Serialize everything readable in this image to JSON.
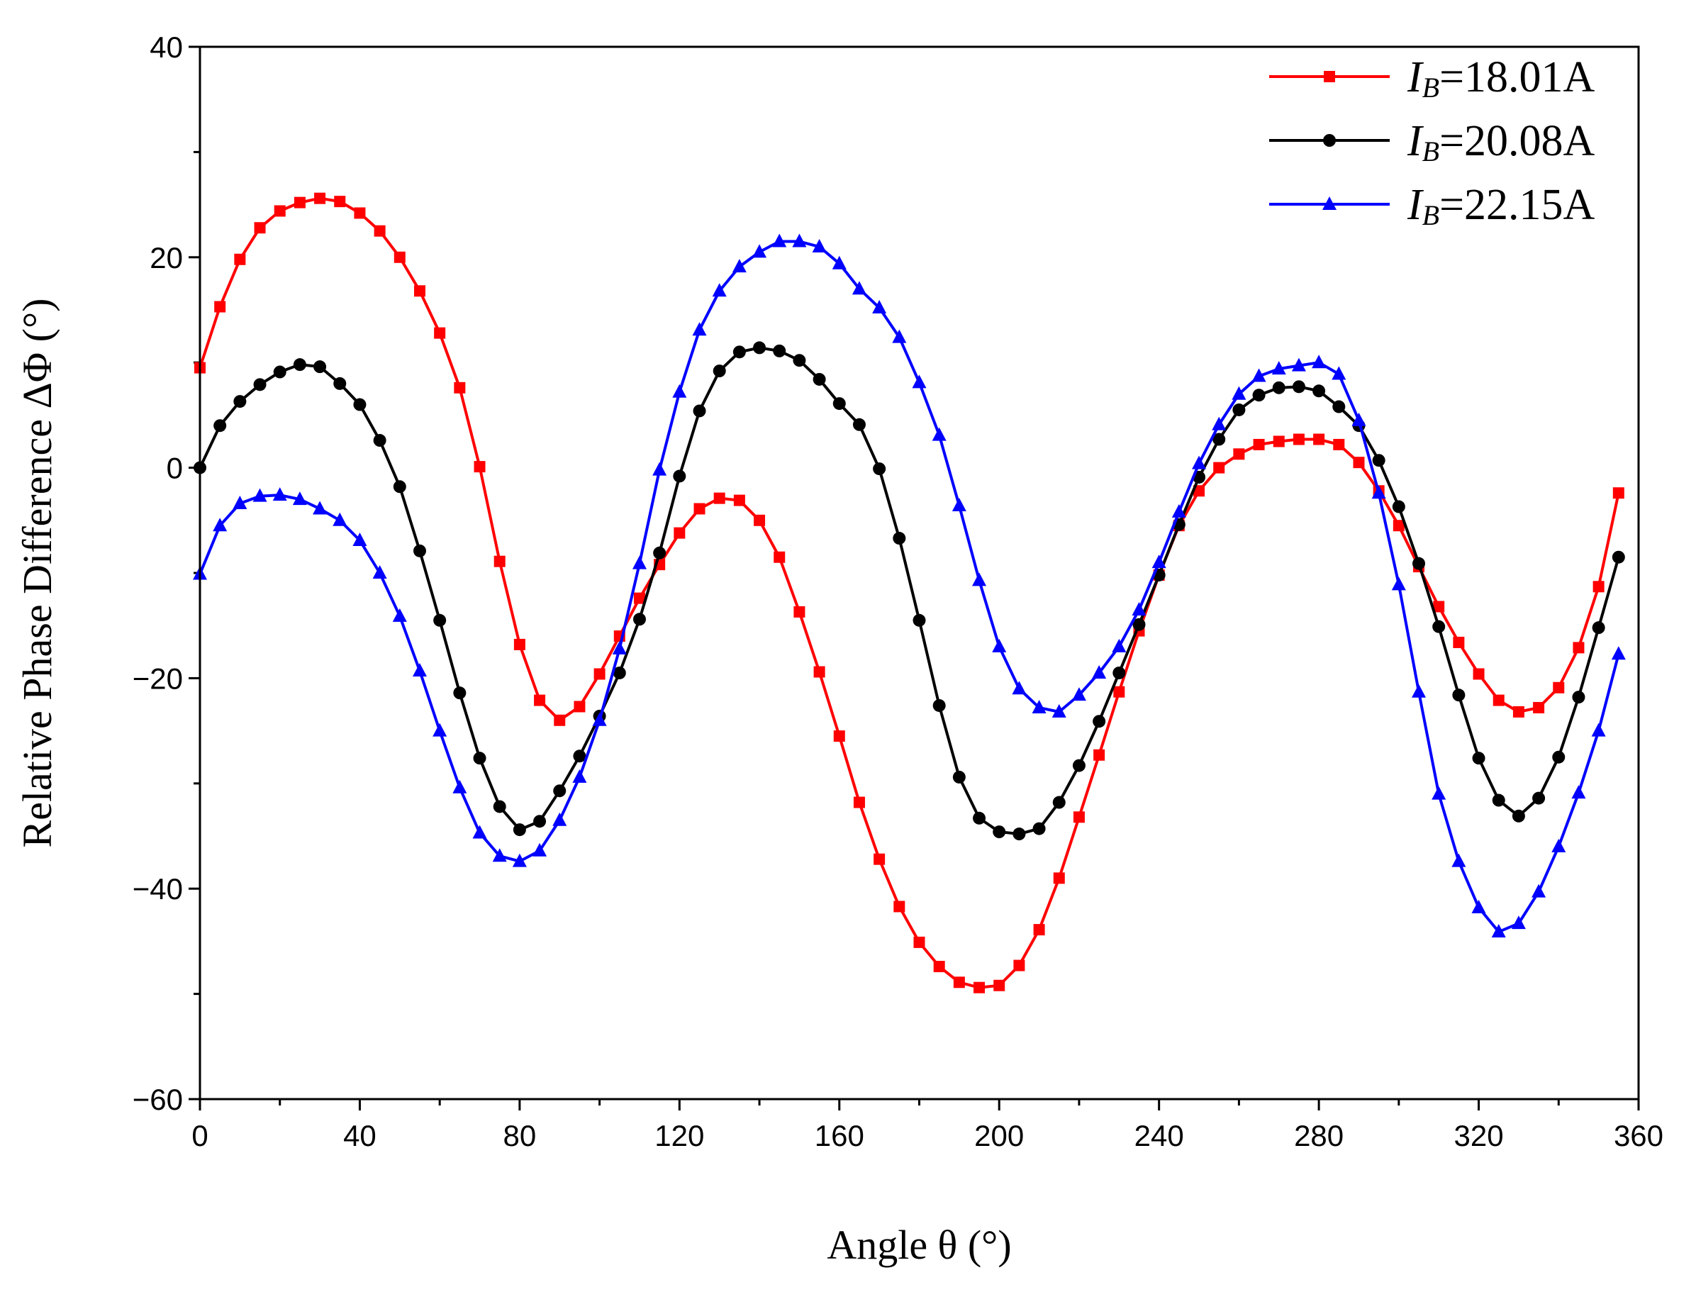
{
  "chart_data": {
    "type": "line",
    "title": "",
    "xlabel": "Angle θ (°)",
    "ylabel": "Relative Phase Difference ΔΦ (°)",
    "xlim": [
      0,
      360
    ],
    "ylim": [
      -60,
      40
    ],
    "x_ticks": [
      0,
      40,
      80,
      120,
      160,
      200,
      240,
      280,
      320,
      360
    ],
    "x_tick_labels": [
      "0",
      "40",
      "80",
      "120",
      "160",
      "200",
      "240",
      "280",
      "320",
      "360"
    ],
    "y_ticks": [
      -60,
      -40,
      -20,
      0,
      20,
      40
    ],
    "y_tick_labels": [
      "−60",
      "−40",
      "−20",
      "0",
      "20",
      "40"
    ],
    "grid": false,
    "legend_position": "top-right",
    "x": [
      0,
      5,
      10,
      15,
      20,
      25,
      30,
      35,
      40,
      45,
      50,
      55,
      60,
      65,
      70,
      75,
      80,
      85,
      90,
      95,
      100,
      105,
      110,
      115,
      120,
      125,
      130,
      135,
      140,
      145,
      150,
      155,
      160,
      165,
      170,
      175,
      180,
      185,
      190,
      195,
      200,
      205,
      210,
      215,
      220,
      225,
      230,
      235,
      240,
      245,
      250,
      255,
      260,
      265,
      270,
      275,
      280,
      285,
      290,
      295,
      300,
      305,
      310,
      315,
      320,
      325,
      330,
      335,
      340,
      345,
      350,
      355
    ],
    "series": [
      {
        "name": "IB=18.01A",
        "legend_italic": "I",
        "legend_sub": "B",
        "legend_rest": "=18.01A",
        "color": "#ff0000",
        "marker": "square",
        "values": [
          9.5,
          15.3,
          19.8,
          22.8,
          24.4,
          25.2,
          25.6,
          25.3,
          24.2,
          22.5,
          20.0,
          16.8,
          12.8,
          7.6,
          0.1,
          -8.9,
          -16.8,
          -22.1,
          -24.0,
          -22.7,
          -19.6,
          -16.0,
          -12.4,
          -9.2,
          -6.2,
          -3.9,
          -2.9,
          -3.1,
          -5.0,
          -8.5,
          -13.7,
          -19.4,
          -25.5,
          -31.8,
          -37.2,
          -41.7,
          -45.1,
          -47.4,
          -48.9,
          -49.4,
          -49.2,
          -47.3,
          -43.9,
          -39.0,
          -33.2,
          -27.3,
          -21.3,
          -15.5,
          -10.2,
          -5.5,
          -2.2,
          0.0,
          1.3,
          2.2,
          2.5,
          2.7,
          2.7,
          2.2,
          0.5,
          -2.2,
          -5.5,
          -9.4,
          -13.2,
          -16.6,
          -19.6,
          -22.1,
          -23.2,
          -22.8,
          -20.9,
          -17.1,
          -11.3,
          -2.4
        ]
      },
      {
        "name": "IB=20.08A",
        "legend_italic": "I",
        "legend_sub": "B",
        "legend_rest": "=20.08A",
        "color": "#000000",
        "marker": "circle",
        "values": [
          0.0,
          4.0,
          6.3,
          7.9,
          9.1,
          9.8,
          9.6,
          8.0,
          6.0,
          2.6,
          -1.8,
          -7.9,
          -14.5,
          -21.4,
          -27.6,
          -32.2,
          -34.4,
          -33.6,
          -30.7,
          -27.4,
          -23.6,
          -19.5,
          -14.4,
          -8.1,
          -0.8,
          5.4,
          9.2,
          11.0,
          11.4,
          11.1,
          10.2,
          8.4,
          6.1,
          4.1,
          -0.1,
          -6.7,
          -14.5,
          -22.6,
          -29.4,
          -33.3,
          -34.6,
          -34.8,
          -34.3,
          -31.8,
          -28.3,
          -24.1,
          -19.5,
          -14.9,
          -10.2,
          -5.4,
          -0.9,
          2.7,
          5.5,
          6.9,
          7.6,
          7.7,
          7.3,
          5.8,
          4.0,
          0.7,
          -3.7,
          -9.1,
          -15.1,
          -21.6,
          -27.6,
          -31.6,
          -33.1,
          -31.4,
          -27.5,
          -21.8,
          -15.2,
          -8.5
        ]
      },
      {
        "name": "IB=22.15A",
        "legend_italic": "I",
        "legend_sub": "B",
        "legend_rest": "=22.15A",
        "color": "#0000ff",
        "marker": "triangle",
        "values": [
          -10.1,
          -5.5,
          -3.4,
          -2.7,
          -2.6,
          -3.0,
          -3.9,
          -5.0,
          -6.9,
          -10.0,
          -14.1,
          -19.3,
          -25.0,
          -30.4,
          -34.7,
          -36.9,
          -37.4,
          -36.4,
          -33.5,
          -29.4,
          -24.0,
          -17.2,
          -9.1,
          -0.2,
          7.2,
          13.1,
          16.8,
          19.1,
          20.5,
          21.5,
          21.5,
          21.0,
          19.4,
          17.0,
          15.2,
          12.4,
          8.1,
          3.1,
          -3.6,
          -10.7,
          -17.0,
          -21.0,
          -22.8,
          -23.2,
          -21.6,
          -19.5,
          -17.0,
          -13.5,
          -9.0,
          -4.2,
          0.4,
          4.1,
          7.0,
          8.7,
          9.4,
          9.7,
          10.0,
          8.9,
          4.5,
          -2.4,
          -11.1,
          -21.3,
          -31.0,
          -37.4,
          -41.8,
          -44.1,
          -43.3,
          -40.3,
          -36.0,
          -30.9,
          -25.0,
          -17.7
        ]
      }
    ]
  }
}
